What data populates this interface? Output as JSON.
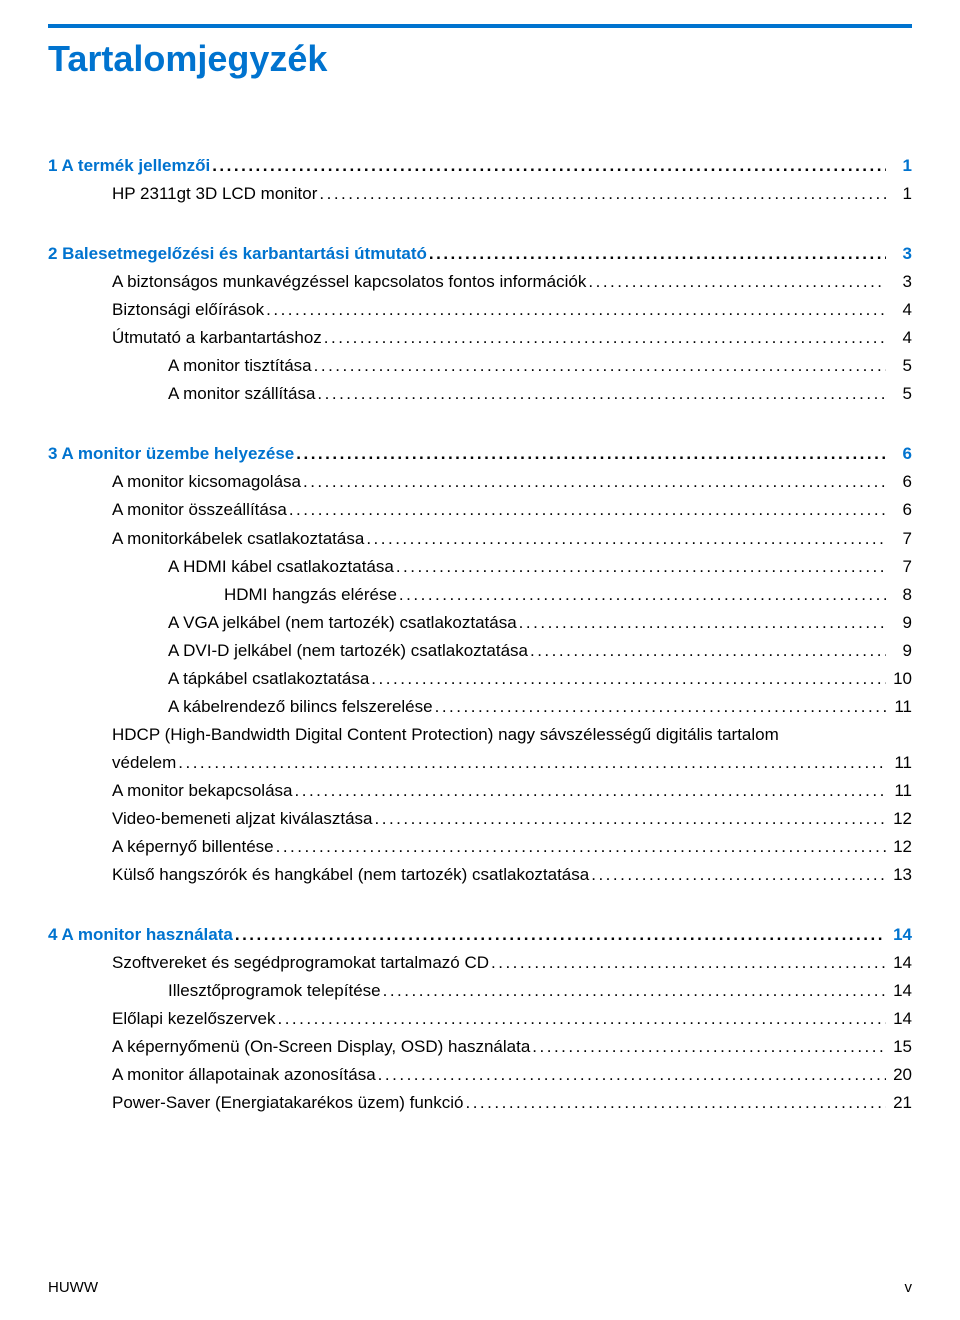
{
  "colors": {
    "accent": "#0073cf",
    "text": "#000000",
    "background": "#ffffff"
  },
  "title": "Tartalomjegyzék",
  "toc": [
    {
      "type": "gap"
    },
    {
      "type": "chapter",
      "indent": 0,
      "label": "1 A termék jellemzői",
      "page": "1"
    },
    {
      "type": "entry",
      "indent": 1,
      "label": "HP 2311gt 3D LCD monitor",
      "page": "1"
    },
    {
      "type": "gap"
    },
    {
      "type": "chapter",
      "indent": 0,
      "label": "2 Balesetmegelőzési és karbantartási útmutató",
      "page": "3"
    },
    {
      "type": "entry",
      "indent": 1,
      "label": "A biztonságos munkavégzéssel kapcsolatos fontos információk",
      "page": "3"
    },
    {
      "type": "entry",
      "indent": 1,
      "label": "Biztonsági előírások",
      "page": "4"
    },
    {
      "type": "entry",
      "indent": 1,
      "label": "Útmutató a karbantartáshoz",
      "page": "4"
    },
    {
      "type": "entry",
      "indent": 2,
      "label": "A monitor tisztítása",
      "page": "5"
    },
    {
      "type": "entry",
      "indent": 2,
      "label": "A monitor szállítása",
      "page": "5"
    },
    {
      "type": "gap"
    },
    {
      "type": "chapter",
      "indent": 0,
      "label": "3 A monitor üzembe helyezése",
      "page": "6"
    },
    {
      "type": "entry",
      "indent": 1,
      "label": "A monitor kicsomagolása",
      "page": "6"
    },
    {
      "type": "entry",
      "indent": 1,
      "label": "A monitor összeállítása",
      "page": "6"
    },
    {
      "type": "entry",
      "indent": 1,
      "label": "A monitorkábelek csatlakoztatása",
      "page": "7"
    },
    {
      "type": "entry",
      "indent": 2,
      "label": "A HDMI kábel csatlakoztatása",
      "page": "7"
    },
    {
      "type": "entry",
      "indent": 3,
      "label": "HDMI hangzás elérése",
      "page": "8"
    },
    {
      "type": "entry",
      "indent": 2,
      "label": "A VGA jelkábel (nem tartozék) csatlakoztatása",
      "page": "9"
    },
    {
      "type": "entry",
      "indent": 2,
      "label": "A DVI-D jelkábel (nem tartozék) csatlakoztatása",
      "page": "9"
    },
    {
      "type": "entry",
      "indent": 2,
      "label": "A tápkábel csatlakoztatása",
      "page": "10"
    },
    {
      "type": "entry",
      "indent": 2,
      "label": "A kábelrendező bilincs felszerelése",
      "page": "11"
    },
    {
      "type": "entry",
      "indent": 1,
      "label": "HDCP (High-Bandwidth Digital Content Protection) nagy sávszélességű digitális tartalom védelem",
      "page": "11",
      "wrap": true
    },
    {
      "type": "entry",
      "indent": 1,
      "label": "A monitor bekapcsolása",
      "page": "11"
    },
    {
      "type": "entry",
      "indent": 1,
      "label": "Video-bemeneti aljzat kiválasztása",
      "page": "12"
    },
    {
      "type": "entry",
      "indent": 1,
      "label": "A képernyő billentése",
      "page": "12"
    },
    {
      "type": "entry",
      "indent": 1,
      "label": "Külső hangszórók és hangkábel (nem tartozék) csatlakoztatása",
      "page": "13"
    },
    {
      "type": "gap"
    },
    {
      "type": "chapter",
      "indent": 0,
      "label": "4 A monitor használata",
      "page": "14"
    },
    {
      "type": "entry",
      "indent": 1,
      "label": "Szoftvereket és segédprogramokat tartalmazó CD",
      "page": "14"
    },
    {
      "type": "entry",
      "indent": 2,
      "label": "Illesztőprogramok telepítése",
      "page": "14"
    },
    {
      "type": "entry",
      "indent": 1,
      "label": "Előlapi kezelőszervek",
      "page": "14"
    },
    {
      "type": "entry",
      "indent": 1,
      "label": "A képernyőmenü (On-Screen Display, OSD) használata",
      "page": "15"
    },
    {
      "type": "entry",
      "indent": 1,
      "label": "A monitor állapotainak azonosítása",
      "page": "20"
    },
    {
      "type": "entry",
      "indent": 1,
      "label": "Power-Saver (Energiatakarékos üzem) funkció",
      "page": "21"
    }
  ],
  "footer": {
    "left": "HUWW",
    "right": "v"
  }
}
